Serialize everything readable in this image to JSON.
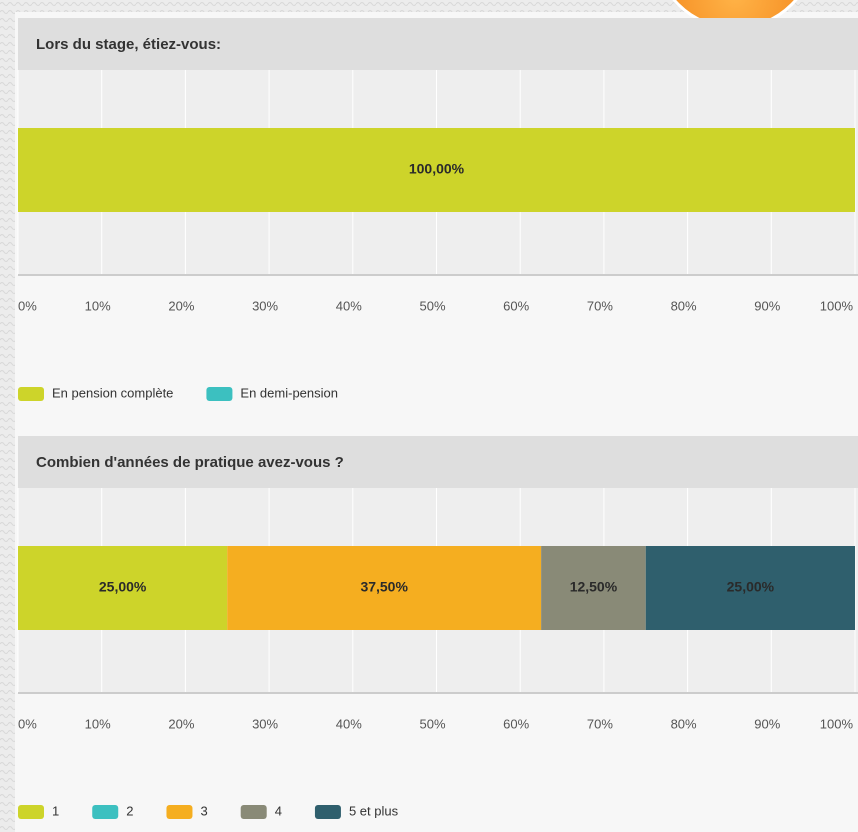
{
  "chart_data": [
    {
      "type": "stacked-bar-horizontal",
      "title": "Lors du stage, étiez-vous:",
      "series": [
        {
          "name": "En pension complète",
          "color": "#cdd42a",
          "values": [
            100
          ],
          "value_labels": [
            "100,00%"
          ]
        },
        {
          "name": "En demi-pension",
          "color": "#3cc0c0",
          "values": [
            0
          ]
        }
      ],
      "xlim": [
        0,
        100
      ],
      "xticks": [
        {
          "value": 0,
          "label": "0%"
        },
        {
          "value": 10,
          "label": "10%"
        },
        {
          "value": 20,
          "label": "20%"
        },
        {
          "value": 30,
          "label": "30%"
        },
        {
          "value": 40,
          "label": "40%"
        },
        {
          "value": 50,
          "label": "50%"
        },
        {
          "value": 60,
          "label": "60%"
        },
        {
          "value": 70,
          "label": "70%"
        },
        {
          "value": 80,
          "label": "80%"
        },
        {
          "value": 90,
          "label": "90%"
        },
        {
          "value": 100,
          "label": "100%"
        }
      ],
      "grid": true,
      "legend": "bottom"
    },
    {
      "type": "stacked-bar-horizontal",
      "title": "Combien d'années de pratique avez-vous ?",
      "series": [
        {
          "name": "1",
          "color": "#cdd42a",
          "values": [
            25
          ],
          "value_labels": [
            "25,00%"
          ]
        },
        {
          "name": "2",
          "color": "#3cc0c0",
          "values": [
            0
          ]
        },
        {
          "name": "3",
          "color": "#f5ae20",
          "values": [
            37.5
          ],
          "value_labels": [
            "37,50%"
          ]
        },
        {
          "name": "4",
          "color": "#898a77",
          "values": [
            12.5
          ],
          "value_labels": [
            "12,50%"
          ]
        },
        {
          "name": "5 et plus",
          "color": "#2f5f6d",
          "values": [
            25
          ],
          "value_labels": [
            "25,00%"
          ]
        }
      ],
      "xlim": [
        0,
        100
      ],
      "xticks": [
        {
          "value": 0,
          "label": "0%"
        },
        {
          "value": 10,
          "label": "10%"
        },
        {
          "value": 20,
          "label": "20%"
        },
        {
          "value": 30,
          "label": "30%"
        },
        {
          "value": 40,
          "label": "40%"
        },
        {
          "value": 50,
          "label": "50%"
        },
        {
          "value": 60,
          "label": "60%"
        },
        {
          "value": 70,
          "label": "70%"
        },
        {
          "value": 80,
          "label": "80%"
        },
        {
          "value": 90,
          "label": "90%"
        },
        {
          "value": 100,
          "label": "100%"
        }
      ],
      "grid": true,
      "legend": "bottom"
    }
  ]
}
